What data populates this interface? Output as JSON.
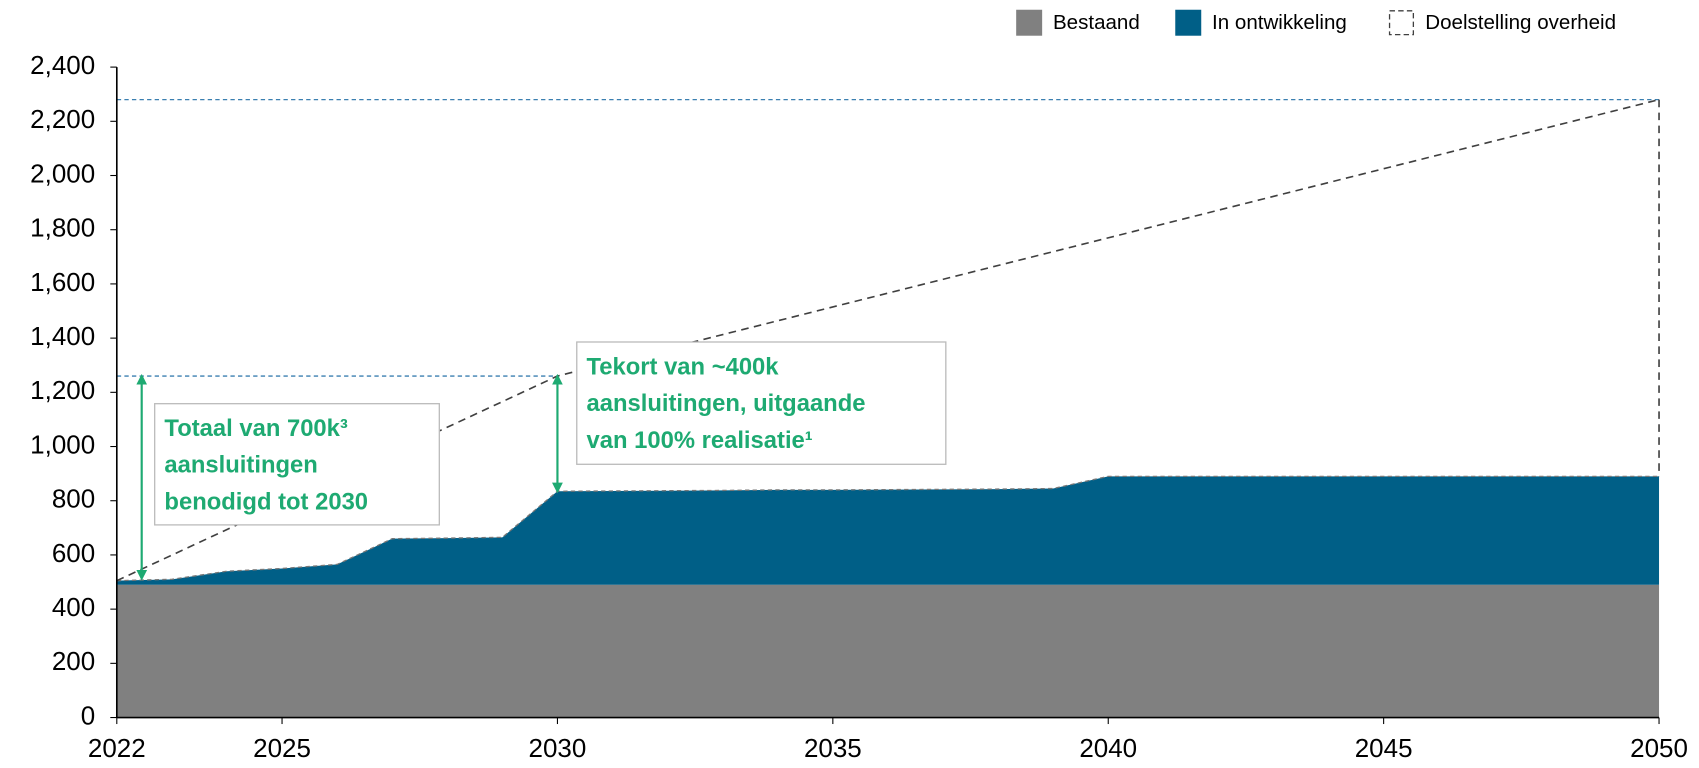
{
  "chart_data": {
    "type": "area",
    "stacked": true,
    "x": [
      2022,
      2023,
      2024,
      2025,
      2026,
      2027,
      2028,
      2029,
      2030,
      2031,
      2032,
      2033,
      2034,
      2035,
      2036,
      2037,
      2038,
      2039,
      2040,
      2041,
      2042,
      2043,
      2044,
      2045,
      2046,
      2047,
      2048,
      2049,
      2050
    ],
    "series": [
      {
        "name": "Bestaand",
        "color": "#808080",
        "values": [
          490,
          490,
          490,
          490,
          490,
          490,
          490,
          490,
          490,
          490,
          490,
          490,
          490,
          490,
          490,
          490,
          490,
          490,
          490,
          490,
          490,
          490,
          490,
          490,
          490,
          490,
          490,
          490,
          490
        ]
      },
      {
        "name": "In ontwikkeling",
        "color": "#005f87",
        "values": [
          15,
          20,
          50,
          60,
          75,
          170,
          172,
          175,
          345,
          346,
          347,
          348,
          350,
          350,
          351,
          352,
          353,
          355,
          400,
          400,
          400,
          400,
          400,
          400,
          400,
          400,
          400,
          400,
          400
        ]
      },
      {
        "name": "Doelstelling overheid",
        "type": "line",
        "dashed": true,
        "color": "#404040",
        "x": [
          2022,
          2030,
          2050
        ],
        "values": [
          505,
          1260,
          2280
        ]
      }
    ],
    "xlim": [
      2022,
      2050
    ],
    "xticks": [
      2022,
      2025,
      2030,
      2035,
      2040,
      2045,
      2050
    ],
    "ylim": [
      0,
      2400
    ],
    "yticks": [
      0,
      200,
      400,
      600,
      800,
      {
        "value": 1000,
        "label": "1,000"
      },
      {
        "value": 1200,
        "label": "1,200"
      },
      {
        "value": 1400,
        "label": "1,400"
      },
      {
        "value": 1600,
        "label": "1,600"
      },
      {
        "value": 1800,
        "label": "1,800"
      },
      {
        "value": 2000,
        "label": "2,000"
      },
      {
        "value": 2200,
        "label": "2,200"
      },
      {
        "value": 2400,
        "label": "2,400"
      }
    ],
    "legend": "top-right",
    "annotations": [
      {
        "lines": [
          "Totaal van 700k³",
          "aansluitingen",
          "benodigd tot 2030"
        ]
      },
      {
        "lines": [
          "Tekort van ~400k",
          "aansluitingen, uitgaande",
          "van 100% realisatie¹"
        ]
      }
    ]
  }
}
